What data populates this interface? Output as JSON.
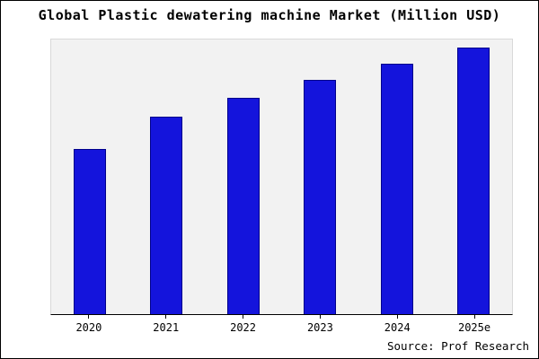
{
  "title": "Global Plastic dewatering machine Market (Million USD)",
  "source": "Source: Prof Research",
  "chart_data": {
    "type": "bar",
    "title": "Global Plastic dewatering machine Market (Million USD)",
    "categories": [
      "2020",
      "2021",
      "2022",
      "2023",
      "2024",
      "2025e"
    ],
    "values": [
      62,
      74,
      81,
      88,
      94,
      100
    ],
    "xlabel": "",
    "ylabel": "",
    "ylim": [
      0,
      103
    ],
    "grid": false,
    "legend_position": "none",
    "bar_color": "#1414dc",
    "bar_edge_color": "#00008b",
    "plot_background": "#f2f2f2",
    "source_note": "Source: Prof Research"
  }
}
